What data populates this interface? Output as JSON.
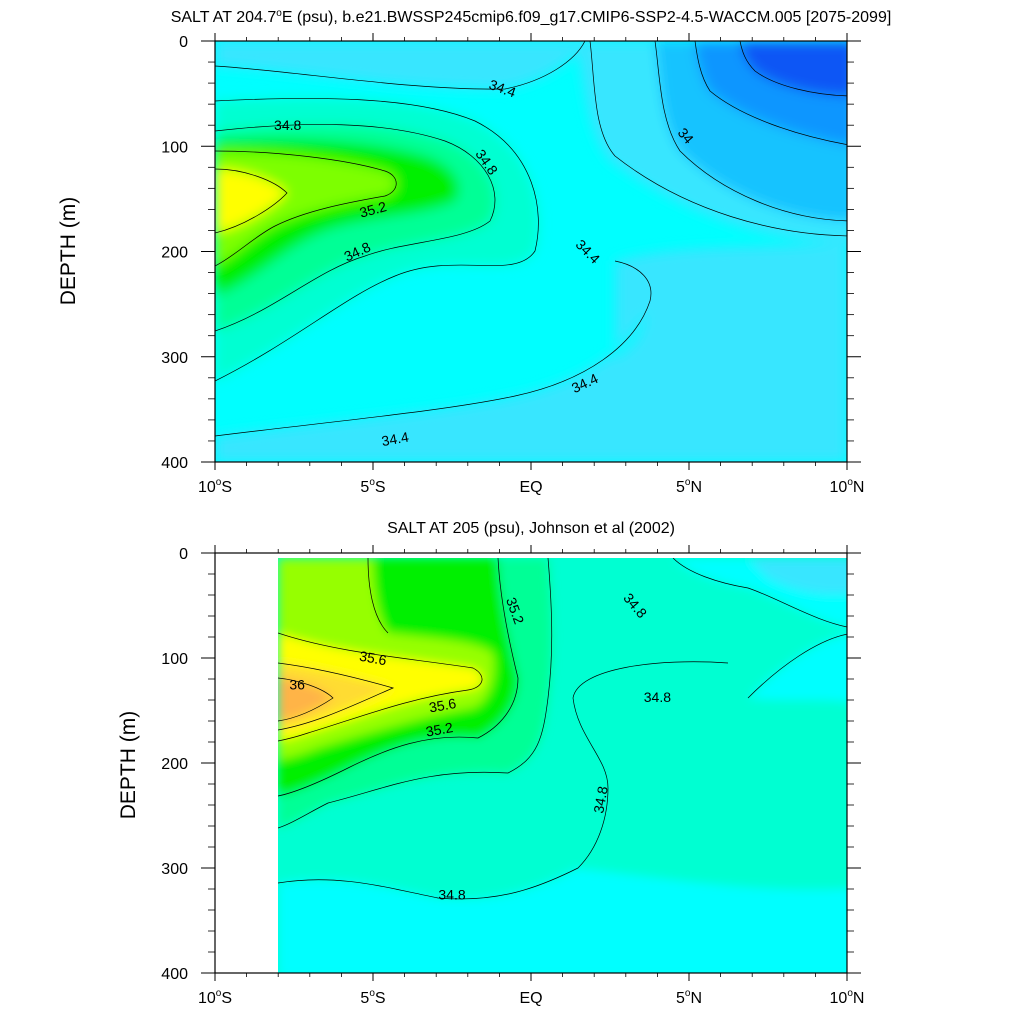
{
  "chart_data": [
    {
      "type": "contour",
      "title": "SALT AT 204.7°E (psu), b.e21.BWSSP245cmip6.f09_g17.CMIP6-SSP2-4.5-WACCM.005 [2075-2099]",
      "title_parts": {
        "pre": "SALT AT 204.7",
        "sup": "o",
        "post": "E (psu), b.e21.BWSSP245cmip6.f09_g17.CMIP6-SSP2-4.5-WACCM.005 [2075-2099]"
      },
      "ylabel": "DEPTH (m)",
      "xlim": [
        -10,
        10
      ],
      "ylim": [
        400,
        0
      ],
      "x_ticks": [
        {
          "value": -10,
          "label": "10",
          "sup": "o",
          "suffix": "S"
        },
        {
          "value": -5,
          "label": "5",
          "sup": "o",
          "suffix": "S"
        },
        {
          "value": 0,
          "label": "EQ",
          "sup": "",
          "suffix": ""
        },
        {
          "value": 5,
          "label": "5",
          "sup": "o",
          "suffix": "N"
        },
        {
          "value": 10,
          "label": "10",
          "sup": "o",
          "suffix": "N"
        }
      ],
      "y_ticks": [
        {
          "value": 0,
          "label": "0"
        },
        {
          "value": 100,
          "label": "100"
        },
        {
          "value": 200,
          "label": "200"
        },
        {
          "value": 300,
          "label": "300"
        },
        {
          "value": 400,
          "label": "400"
        }
      ],
      "levels": [
        {
          "value": 33.6,
          "color": "#0a57f5"
        },
        {
          "value": 33.8,
          "color": "#0a96ff"
        },
        {
          "value": 34.0,
          "color": "#14c3ff"
        },
        {
          "value": 34.2,
          "color": "#38e6ff"
        },
        {
          "value": 34.4,
          "color": "#00ffff"
        },
        {
          "value": 34.6,
          "color": "#00ffd2"
        },
        {
          "value": 34.8,
          "color": "#00ff96"
        },
        {
          "value": 35.0,
          "color": "#00f000"
        },
        {
          "value": 35.2,
          "color": "#7dff00"
        },
        {
          "value": 35.4,
          "color": "#ffff00"
        }
      ],
      "contour_labels": [
        {
          "text": "34.4",
          "x": -0.9,
          "y": 45,
          "rot": 20
        },
        {
          "text": "34.8",
          "x": -7.7,
          "y": 80,
          "rot": 0
        },
        {
          "text": "35.2",
          "x": -5.0,
          "y": 160,
          "rot": -15
        },
        {
          "text": "34.8",
          "x": -1.4,
          "y": 115,
          "rot": 55
        },
        {
          "text": "34.8",
          "x": -5.5,
          "y": 200,
          "rot": -25
        },
        {
          "text": "34.4",
          "x": 1.8,
          "y": 200,
          "rot": 45
        },
        {
          "text": "34.4",
          "x": 1.7,
          "y": 325,
          "rot": -25
        },
        {
          "text": "34.4",
          "x": -4.3,
          "y": 378,
          "rot": -10
        },
        {
          "text": "34",
          "x": 4.9,
          "y": 90,
          "rot": 50
        }
      ]
    },
    {
      "type": "contour",
      "title": "SALT AT 205 (psu), Johnson et al (2002)",
      "ylabel": "DEPTH (m)",
      "xlim": [
        -10,
        10
      ],
      "ylim": [
        400,
        0
      ],
      "data_xlim": [
        -8,
        10
      ],
      "x_ticks": [
        {
          "value": -10,
          "label": "10",
          "sup": "o",
          "suffix": "S"
        },
        {
          "value": -5,
          "label": "5",
          "sup": "o",
          "suffix": "S"
        },
        {
          "value": 0,
          "label": "EQ",
          "sup": "",
          "suffix": ""
        },
        {
          "value": 5,
          "label": "5",
          "sup": "o",
          "suffix": "N"
        },
        {
          "value": 10,
          "label": "10",
          "sup": "o",
          "suffix": "N"
        }
      ],
      "y_ticks": [
        {
          "value": 0,
          "label": "0"
        },
        {
          "value": 100,
          "label": "100"
        },
        {
          "value": 200,
          "label": "200"
        },
        {
          "value": 300,
          "label": "300"
        },
        {
          "value": 400,
          "label": "400"
        }
      ],
      "levels": [
        {
          "value": 34.4,
          "color": "#38e6ff"
        },
        {
          "value": 34.6,
          "color": "#00ffff"
        },
        {
          "value": 34.8,
          "color": "#00ffd2"
        },
        {
          "value": 35.0,
          "color": "#00ff96"
        },
        {
          "value": 35.2,
          "color": "#00f000"
        },
        {
          "value": 35.4,
          "color": "#96ff00"
        },
        {
          "value": 35.6,
          "color": "#ffff00"
        },
        {
          "value": 35.8,
          "color": "#ffdc32"
        },
        {
          "value": 36.0,
          "color": "#ffb446"
        }
      ],
      "contour_labels": [
        {
          "text": "35.2",
          "x": -0.5,
          "y": 55,
          "rot": 70
        },
        {
          "text": "34.8",
          "x": 3.3,
          "y": 50,
          "rot": 50
        },
        {
          "text": "35.6",
          "x": -5.0,
          "y": 100,
          "rot": 10
        },
        {
          "text": "36",
          "x": -7.4,
          "y": 125,
          "rot": 0
        },
        {
          "text": "35.6",
          "x": -2.8,
          "y": 145,
          "rot": -10
        },
        {
          "text": "35.2",
          "x": -2.9,
          "y": 168,
          "rot": -10
        },
        {
          "text": "34.8",
          "x": 4.0,
          "y": 137,
          "rot": 0
        },
        {
          "text": "34.8",
          "x": 2.2,
          "y": 235,
          "rot": -80
        },
        {
          "text": "34.8",
          "x": -2.5,
          "y": 325,
          "rot": 0
        }
      ]
    }
  ]
}
